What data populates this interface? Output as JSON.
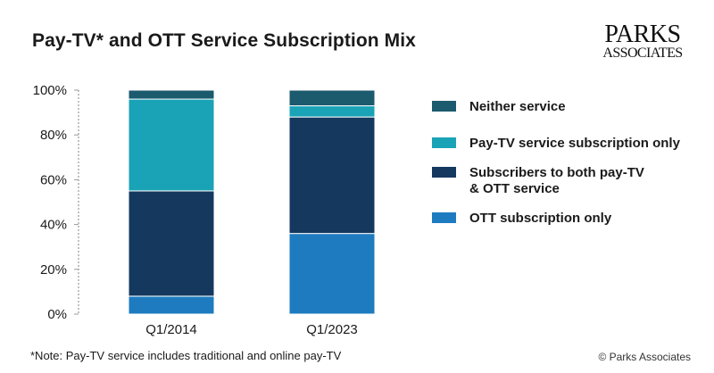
{
  "header": {
    "title": "Pay-TV* and OTT Service Subscription Mix",
    "logo_line1": "PARKS",
    "logo_line2": "ASSOCIATES"
  },
  "footer": {
    "note": "*Note: Pay-TV service includes traditional and online pay-TV",
    "copyright": "© Parks Associates"
  },
  "chart_data": {
    "type": "bar",
    "stacked": true,
    "title": "Pay-TV* and OTT Service Subscription Mix",
    "xlabel": "",
    "ylabel": "",
    "ylim": [
      0,
      100
    ],
    "yticks": [
      "0%",
      "20%",
      "40%",
      "60%",
      "80%",
      "100%"
    ],
    "ytick_values": [
      0,
      20,
      40,
      60,
      80,
      100
    ],
    "categories": [
      "Q1/2014",
      "Q1/2023"
    ],
    "series": [
      {
        "name": "OTT subscription only",
        "color": "#1e7bbf",
        "values": [
          8,
          36
        ]
      },
      {
        "name": "Subscribers to both pay-TV & OTT service",
        "color": "#15385f",
        "values": [
          47,
          52
        ]
      },
      {
        "name": "Pay-TV service subscription only",
        "color": "#1aa3b6",
        "values": [
          41,
          5
        ]
      },
      {
        "name": "Neither service",
        "color": "#1c5a6e",
        "values": [
          4,
          7
        ]
      }
    ],
    "legend": [
      {
        "lines": [
          "Neither service"
        ],
        "color": "#1c5a6e"
      },
      {
        "lines": [
          "Pay-TV service subscription only"
        ],
        "color": "#1aa3b6"
      },
      {
        "lines": [
          "Subscribers to both pay-TV",
          "& OTT service"
        ],
        "color": "#15385f"
      },
      {
        "lines": [
          "OTT subscription only"
        ],
        "color": "#1e7bbf"
      }
    ],
    "legend_position": "right",
    "grid": false
  }
}
